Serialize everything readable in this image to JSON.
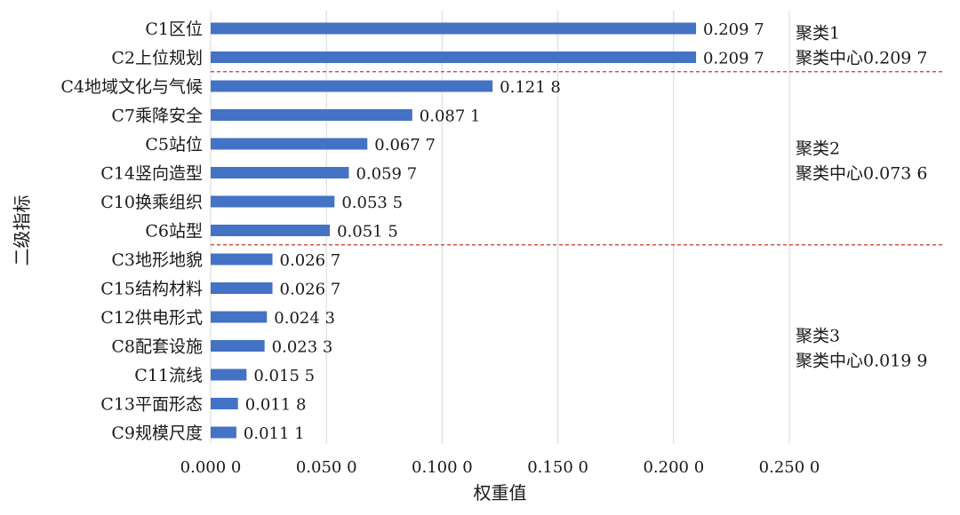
{
  "chart_data": {
    "type": "bar",
    "orientation": "horizontal",
    "categories": [
      "C1区位",
      "C2上位规划",
      "C4地域文化与气候",
      "C7乘降安全",
      "C5站位",
      "C14竖向造型",
      "C10换乘组织",
      "C6站型",
      "C3地形地貌",
      "C15结构材料",
      "C12供电形式",
      "C8配套设施",
      "C11流线",
      "C13平面形态",
      "C9规模尺度"
    ],
    "values": [
      0.2097,
      0.2097,
      0.1218,
      0.0871,
      0.0677,
      0.0597,
      0.0535,
      0.0515,
      0.0267,
      0.0267,
      0.0243,
      0.0233,
      0.0155,
      0.0118,
      0.0111
    ],
    "value_labels": [
      "0.209 7",
      "0.209 7",
      "0.121 8",
      "0.087 1",
      "0.067 7",
      "0.059 7",
      "0.053 5",
      "0.051 5",
      "0.026 7",
      "0.026 7",
      "0.024 3",
      "0.023 3",
      "0.015 5",
      "0.011 8",
      "0.011 1"
    ],
    "xlabel": "权重值",
    "ylabel": "二级指标",
    "xlim": [
      0,
      0.25
    ],
    "xticks": [
      0,
      0.05,
      0.1,
      0.15,
      0.2,
      0.25
    ],
    "xtick_labels": [
      "0.000 0",
      "0.050 0",
      "0.100 0",
      "0.150 0",
      "0.200 0",
      "0.250 0"
    ],
    "grid": "vertical",
    "bar_color": "#4472c4",
    "grid_color": "#d9d9d9",
    "divider_color": "#c0392b",
    "clusters": [
      {
        "name": "聚类1",
        "center_label": "聚类中心0.209 7",
        "first_index": 0,
        "last_index": 1
      },
      {
        "name": "聚类2",
        "center_label": "聚类中心0.073 6",
        "first_index": 2,
        "last_index": 7
      },
      {
        "name": "聚类3",
        "center_label": "聚类中心0.019 9",
        "first_index": 8,
        "last_index": 14
      }
    ]
  }
}
